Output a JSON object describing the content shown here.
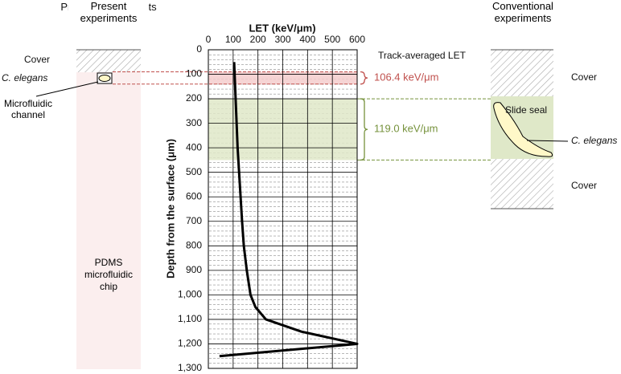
{
  "chart_data": {
    "type": "line",
    "xlabel": "LET (keV/μm)",
    "ylabel": "Depth from the surface (μm)",
    "xlim": [
      0,
      600
    ],
    "xticks": [
      0,
      100,
      200,
      300,
      400,
      500,
      600
    ],
    "ylim": [
      0,
      1300
    ],
    "yticks": [
      0,
      100,
      200,
      300,
      400,
      500,
      600,
      700,
      800,
      900,
      {
        "value": 1000,
        "label": "1,000"
      },
      {
        "value": 1100,
        "label": "1,100"
      },
      {
        "value": 1200,
        "label": "1,200"
      },
      {
        "value": 1300,
        "label": "1,300"
      }
    ],
    "y_inverted": true,
    "grid": true,
    "series": [
      {
        "color": "#000000",
        "x": [
          104,
          110,
          118,
          124,
          130,
          136,
          143,
          155,
          170,
          190,
          232,
          375,
          600,
          45
        ],
        "values": [
          50,
          200,
          400,
          500,
          600,
          700,
          800,
          900,
          1000,
          1050,
          1100,
          1150,
          1200,
          1250
        ]
      }
    ],
    "track_label": "Track-averaged LET",
    "bands": [
      {
        "range": [
          90,
          140
        ],
        "color": "#f4cccc",
        "line": "#c0504d",
        "label": "106.4 keV/μm"
      },
      {
        "range": [
          200,
          450
        ],
        "color": "#dfe8c8",
        "line": "#76923c",
        "label": "119.0 keV/μm"
      }
    ],
    "left_panel": {
      "title": "Present experiments",
      "cover": "Cover",
      "worm": "C. elegans",
      "channel": "Microfluidic channel",
      "chip": "PDMS microfluidic chip"
    },
    "right_panel": {
      "title": "Conventional experiments",
      "cover_top": "Cover",
      "seal": "Slide seal",
      "worm": "C. elegans",
      "cover_bottom": "Cover"
    }
  }
}
